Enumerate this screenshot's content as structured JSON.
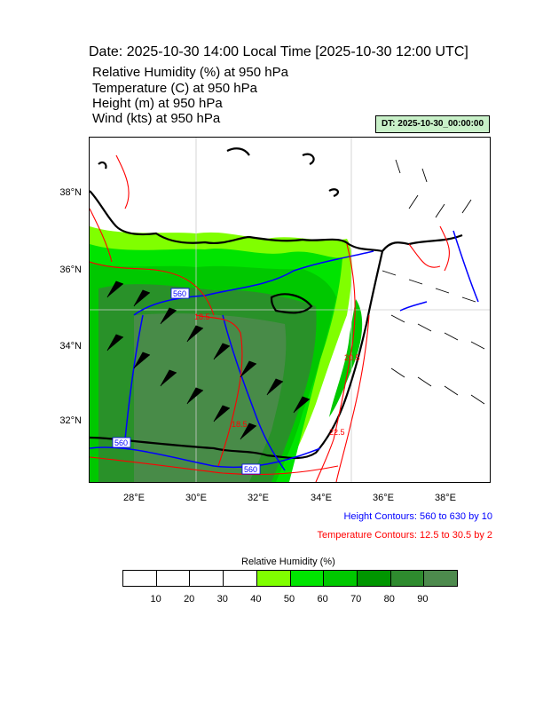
{
  "header": {
    "title": "Date: 2025-10-30  14:00 Local Time [2025-10-30  12:00 UTC]",
    "lines": [
      "Relative Humidity   (%)     at   950 hPa",
      "Temperature   (C)     at   950 hPa",
      "Height   (m)     at   950 hPa",
      "Wind   (kts)     at   950 hPa"
    ],
    "dt_badge": "DT: 2025-10-30_00:00:00"
  },
  "map": {
    "lat_labels": [
      "38°N",
      "36°N",
      "34°N",
      "32°N"
    ],
    "lon_labels": [
      "28°E",
      "30°E",
      "32°E",
      "34°E",
      "36°E",
      "38°E"
    ],
    "height_labels": [
      "560",
      "560",
      "560"
    ],
    "temp_labels": [
      "18.5",
      "20.5",
      "18.5",
      "22.5"
    ]
  },
  "legend": {
    "height": "Height Contours: 560 to 630 by 10",
    "temperature": "Temperature Contours: 12.5 to 30.5 by 2"
  },
  "colorbar": {
    "title": "Relative Humidity  (%)",
    "labels": [
      "10",
      "20",
      "30",
      "40",
      "50",
      "60",
      "70",
      "80",
      "90"
    ],
    "colors": [
      "#ffffff",
      "#ffffff",
      "#ffffff",
      "#ffffff",
      "#80ff00",
      "#00e400",
      "#00c800",
      "#009600",
      "#2e8b2e",
      "#4d8a4d"
    ]
  }
}
